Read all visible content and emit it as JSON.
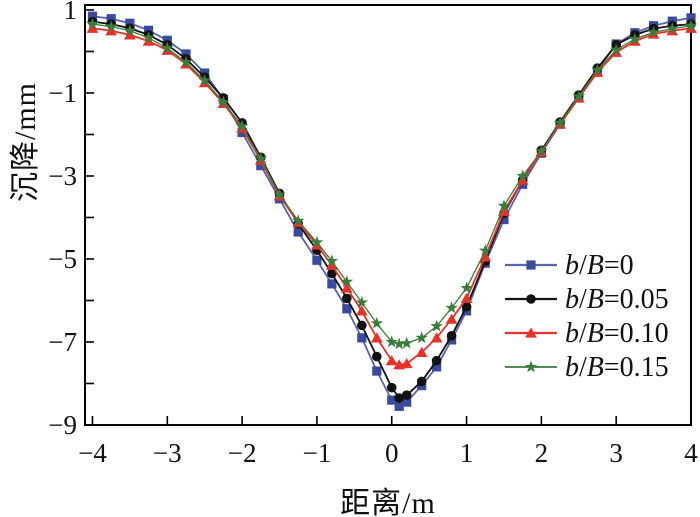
{
  "figure": {
    "background": "#ffffff",
    "text_color": "#111111",
    "axis_color": "#000000"
  },
  "chart_data": {
    "type": "line",
    "title": "",
    "xlabel": "距离/m",
    "ylabel": "沉降/mm",
    "xlim": [
      -4.1,
      4.0
    ],
    "ylim": [
      -9,
      1.12
    ],
    "grid": "off",
    "legend_position": "inside-right-center",
    "x_ticks": [
      -4,
      -3,
      -2,
      -1,
      0,
      1,
      2,
      3,
      4
    ],
    "x_tick_labels": [
      "−4",
      "−3",
      "−2",
      "−1",
      "0",
      "1",
      "2",
      "3",
      "4"
    ],
    "y_ticks": [
      1,
      0,
      -1,
      -2,
      -3,
      -4,
      -5,
      -6,
      -7,
      -8,
      -9
    ],
    "y_tick_labels": [
      "1",
      "",
      "−1",
      "",
      "−3",
      "",
      "−5",
      "",
      "−7",
      "",
      "−9"
    ],
    "x": [
      -4,
      -3.75,
      -3.5,
      -3.25,
      -3,
      -2.75,
      -2.5,
      -2.25,
      -2,
      -1.75,
      -1.5,
      -1.25,
      -1,
      -0.8,
      -0.6,
      -0.4,
      -0.2,
      0,
      0.1,
      0.2,
      0.4,
      0.6,
      0.8,
      1,
      1.25,
      1.5,
      1.75,
      2,
      2.25,
      2.5,
      2.75,
      3,
      3.25,
      3.5,
      3.75,
      4
    ],
    "series": [
      {
        "name": "b/B=0",
        "marker": "square",
        "marker_color": "#3A4B9F",
        "line_color": "#5565AE",
        "line_width": 1.8,
        "values": [
          0.85,
          0.79,
          0.68,
          0.51,
          0.27,
          -0.06,
          -0.52,
          -1.15,
          -1.95,
          -2.75,
          -3.55,
          -4.35,
          -5.03,
          -5.6,
          -6.2,
          -6.9,
          -7.7,
          -8.4,
          -8.55,
          -8.45,
          -8.05,
          -7.6,
          -6.95,
          -6.25,
          -5.1,
          -4.05,
          -3.2,
          -2.45,
          -1.75,
          -1.1,
          -0.45,
          0.18,
          0.45,
          0.62,
          0.73,
          0.81
        ]
      },
      {
        "name": "b/B=0.05",
        "marker": "circle",
        "marker_color": "#111111",
        "line_color": "#111111",
        "line_width": 1.8,
        "values": [
          0.72,
          0.66,
          0.56,
          0.4,
          0.16,
          -0.18,
          -0.62,
          -1.12,
          -1.72,
          -2.55,
          -3.42,
          -4.15,
          -4.79,
          -5.35,
          -5.95,
          -6.6,
          -7.35,
          -8.1,
          -8.35,
          -8.28,
          -7.95,
          -7.45,
          -6.85,
          -6.15,
          -5.05,
          -3.9,
          -3.1,
          -2.38,
          -1.7,
          -1.05,
          -0.4,
          0.16,
          0.4,
          0.55,
          0.62,
          0.66
        ]
      },
      {
        "name": "b/B=0.10",
        "marker": "triangle",
        "marker_color": "#E6332A",
        "line_color": "#E6332A",
        "line_width": 1.8,
        "values": [
          0.56,
          0.5,
          0.4,
          0.25,
          0.03,
          -0.3,
          -0.75,
          -1.25,
          -1.85,
          -2.62,
          -3.48,
          -4.12,
          -4.66,
          -5.15,
          -5.7,
          -6.25,
          -6.9,
          -7.45,
          -7.55,
          -7.52,
          -7.25,
          -6.9,
          -6.45,
          -5.95,
          -4.95,
          -3.85,
          -3.1,
          -2.42,
          -1.75,
          -1.12,
          -0.5,
          -0.02,
          0.25,
          0.42,
          0.5,
          0.56
        ]
      },
      {
        "name": "b/B=0.15",
        "marker": "star",
        "marker_color": "#3B7D3B",
        "line_color": "#3B7D3B",
        "line_width": 1.3,
        "values": [
          0.66,
          0.6,
          0.5,
          0.33,
          0.08,
          -0.26,
          -0.7,
          -1.22,
          -1.8,
          -2.58,
          -3.45,
          -4.08,
          -4.6,
          -5.05,
          -5.55,
          -6.05,
          -6.55,
          -7.0,
          -7.05,
          -7.03,
          -6.9,
          -6.62,
          -6.18,
          -5.7,
          -4.8,
          -3.72,
          -3.0,
          -2.4,
          -1.72,
          -1.08,
          -0.45,
          0.04,
          0.3,
          0.46,
          0.55,
          0.62
        ]
      }
    ]
  }
}
